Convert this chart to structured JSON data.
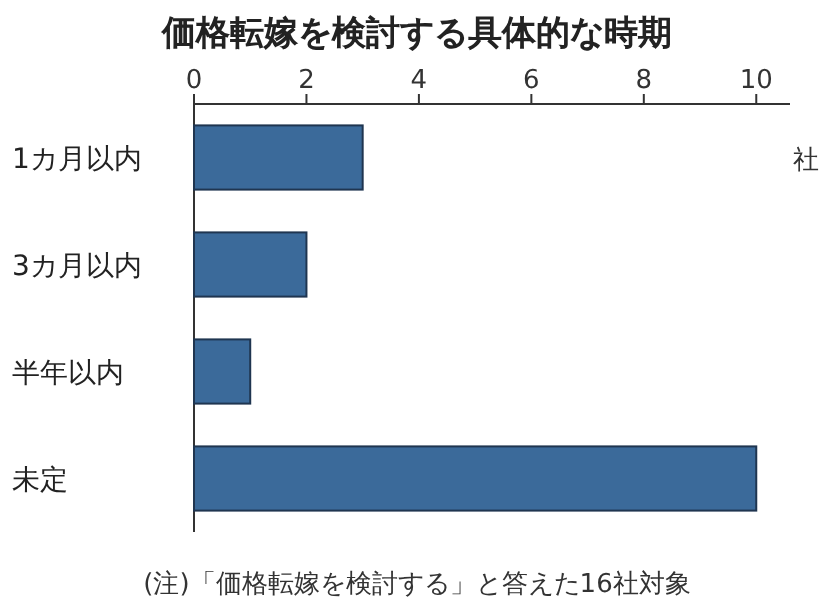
{
  "chart_data": {
    "type": "bar",
    "orientation": "horizontal",
    "title": "価格転嫁を検討する具体的な時期",
    "xlabel": "社",
    "categories": [
      "1カ月以内",
      "3カ月以内",
      "半年以内",
      "未定"
    ],
    "values": [
      3,
      2,
      1,
      10
    ],
    "color": "#3b6a9a",
    "xlim": [
      0,
      10.6
    ],
    "xticks": [
      0,
      2,
      4,
      6,
      8,
      10
    ],
    "annotations": [
      "(注)「価格転嫁を検討する」と答えた16社対象"
    ]
  }
}
